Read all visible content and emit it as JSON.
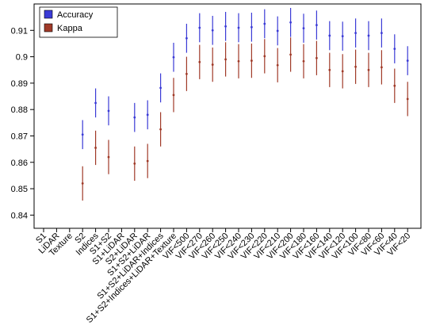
{
  "chart_data": {
    "type": "scatter",
    "subtype": "errorbar",
    "ylim": [
      0.835,
      0.92
    ],
    "yticks": [
      "0.84",
      "0.85",
      "0.86",
      "0.87",
      "0.88",
      "0.89",
      "0.9",
      "0.91"
    ],
    "grid": false,
    "legend_position": "top-left",
    "categories": [
      "S1",
      "LiDAR",
      "Texture",
      "S2",
      "Indices",
      "S1+S2",
      "S1+LiDAR",
      "S2+LiDAR",
      "S1+S2+LiDAR",
      "S1+S2+LiDAR+Indices",
      "S1+S2+Indices+LiDAR+Texture",
      "VIF<500",
      "VIF<270",
      "VIF<260",
      "VIF<250",
      "VIF<240",
      "VIF<230",
      "VIF<220",
      "VIF<210",
      "VIF<200",
      "VIF<180",
      "VIF<160",
      "VIF<140",
      "VIF<120",
      "VIF<100",
      "VIF<80",
      "VIF<60",
      "VIF<40",
      "VIF<20"
    ],
    "series": [
      {
        "name": "Accuracy",
        "color": "#3b3bd6",
        "values": [
          null,
          null,
          null,
          0.8705,
          0.8825,
          0.8795,
          null,
          0.877,
          0.878,
          0.8882,
          0.8998,
          0.907,
          0.911,
          0.91,
          0.9115,
          0.911,
          0.9112,
          0.9125,
          0.9098,
          0.913,
          0.9108,
          0.912,
          0.908,
          0.9078,
          0.909,
          0.908,
          0.909,
          0.903,
          0.8985
        ],
        "errors": [
          null,
          null,
          null,
          0.0055,
          0.0055,
          0.0055,
          null,
          0.0055,
          0.0055,
          0.0055,
          0.0055,
          0.0055,
          0.0055,
          0.0055,
          0.0055,
          0.0055,
          0.0055,
          0.0055,
          0.0055,
          0.0055,
          0.0055,
          0.0055,
          0.0055,
          0.0055,
          0.0055,
          0.0055,
          0.0055,
          0.0055,
          0.0055
        ]
      },
      {
        "name": "Kappa",
        "color": "#a03a28",
        "values": [
          null,
          null,
          null,
          0.852,
          0.8655,
          0.862,
          null,
          0.8595,
          0.8605,
          0.8725,
          0.8855,
          0.8935,
          0.898,
          0.897,
          0.899,
          0.8983,
          0.8985,
          0.9002,
          0.8968,
          0.9008,
          0.8983,
          0.8995,
          0.895,
          0.8945,
          0.8962,
          0.895,
          0.896,
          0.889,
          0.884
        ],
        "errors": [
          null,
          null,
          null,
          0.0065,
          0.0065,
          0.0065,
          null,
          0.0065,
          0.0065,
          0.0065,
          0.0065,
          0.0065,
          0.0065,
          0.0065,
          0.0065,
          0.0065,
          0.0065,
          0.0065,
          0.0065,
          0.0065,
          0.0065,
          0.0065,
          0.0065,
          0.0065,
          0.0065,
          0.0065,
          0.0065,
          0.0065,
          0.0065
        ]
      }
    ]
  }
}
